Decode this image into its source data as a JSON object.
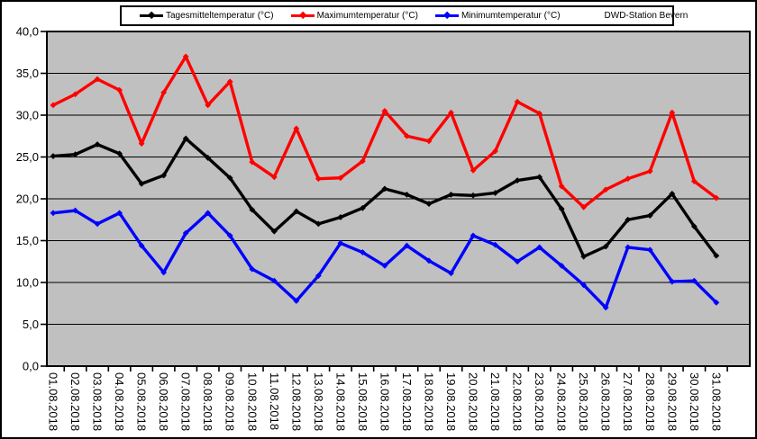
{
  "legend": {
    "station": "DWD-Station Bevern"
  },
  "chart_data": {
    "type": "line",
    "title": "",
    "xlabel": "",
    "ylabel": "",
    "annotation": "DWD-Station Bevern",
    "categories": [
      "01.08.2018",
      "02.08.2018",
      "03.08.2018",
      "04.08.2018",
      "05.08.2018",
      "06.08.2018",
      "07.08.2018",
      "08.08.2018",
      "09.08.2018",
      "10.08.2018",
      "11.08.2018",
      "12.08.2018",
      "13.08.2018",
      "14.08.2018",
      "15.08.2018",
      "16.08.2018",
      "17.08.2018",
      "18.08.2018",
      "19.08.2018",
      "20.08.2018",
      "21.08.2018",
      "22.08.2018",
      "23.08.2018",
      "24.08.2018",
      "25.08.2018",
      "26.08.2018",
      "27.08.2018",
      "28.08.2018",
      "29.08.2018",
      "30.08.2018",
      "31.08.2018"
    ],
    "series": [
      {
        "name": "Tagesmitteltemperatur (°C)",
        "color": "#000000",
        "values": [
          25.1,
          25.3,
          26.5,
          25.4,
          21.8,
          22.8,
          27.2,
          24.9,
          22.5,
          18.7,
          16.1,
          18.5,
          17.0,
          17.8,
          18.9,
          21.2,
          20.5,
          19.4,
          20.5,
          20.4,
          20.7,
          22.2,
          22.6,
          18.8,
          13.1,
          14.3,
          17.5,
          18.0,
          20.6,
          16.7,
          13.2
        ]
      },
      {
        "name": "Maximumtemperatur (°C)",
        "color": "#FF0000",
        "values": [
          31.2,
          32.5,
          34.3,
          33.0,
          26.6,
          32.7,
          37.0,
          31.2,
          34.0,
          24.4,
          22.6,
          28.4,
          22.4,
          22.5,
          24.5,
          30.5,
          27.5,
          26.9,
          30.3,
          23.4,
          25.7,
          31.6,
          30.2,
          21.5,
          19.0,
          21.1,
          22.4,
          23.3,
          30.3,
          22.1,
          20.1
        ]
      },
      {
        "name": "Minimumtemperatur (°C)",
        "color": "#0000FF",
        "values": [
          18.3,
          18.6,
          17.0,
          18.3,
          14.4,
          11.2,
          15.9,
          18.3,
          15.6,
          11.6,
          10.2,
          7.8,
          10.8,
          14.7,
          13.6,
          12.0,
          14.4,
          12.6,
          11.1,
          15.6,
          14.5,
          12.5,
          14.2,
          12.0,
          9.7,
          7.0,
          14.2,
          13.9,
          10.1,
          10.2,
          7.6
        ]
      }
    ],
    "ylim": [
      0,
      40
    ],
    "y_tick_step": 5,
    "y_ticks": [
      "0,0",
      "5,0",
      "10,0",
      "15,0",
      "20,0",
      "25,0",
      "30,0",
      "35,0",
      "40,0"
    ],
    "grid": true,
    "legend_position": "top",
    "plot_bg": "#C0C0C0",
    "x_label_rotation": 90
  }
}
